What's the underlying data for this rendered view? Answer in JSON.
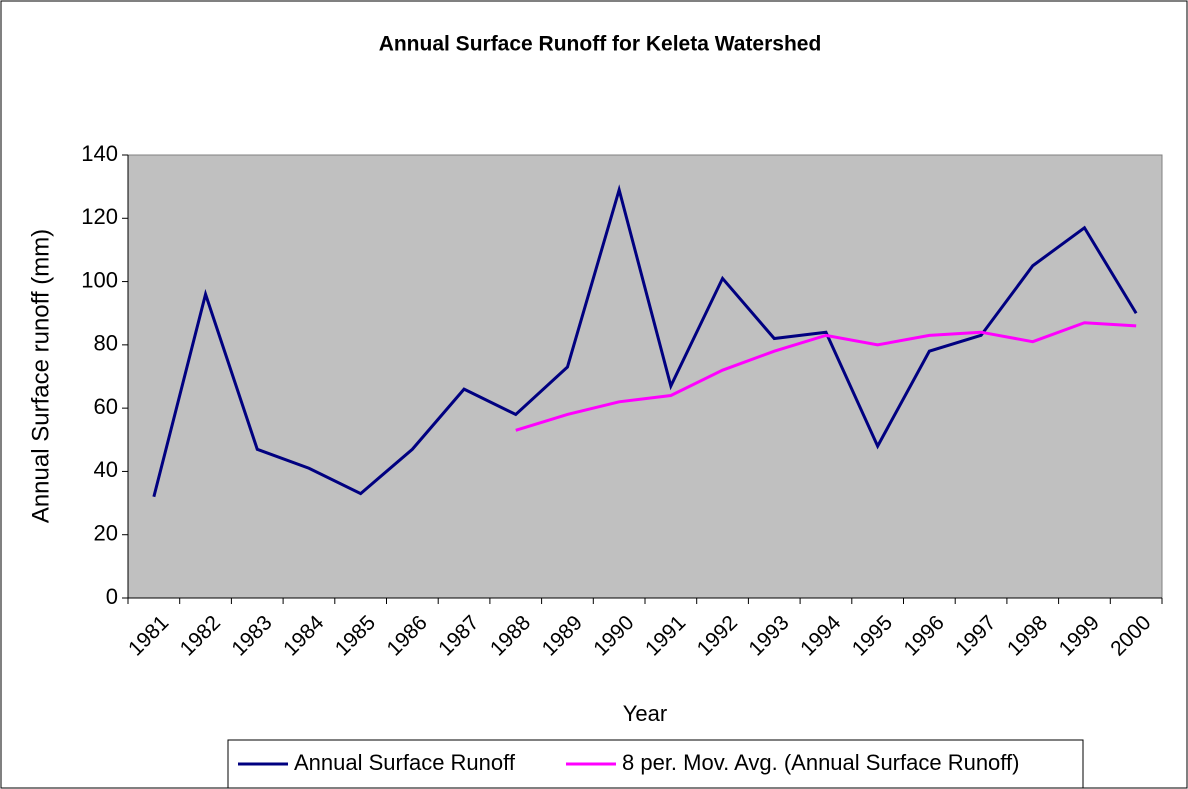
{
  "chart_data": {
    "type": "line",
    "title": "Annual Surface Runoff for Keleta Watershed",
    "x_label": "Year",
    "y_label": "Annual Surface runoff (mm)",
    "categories": [
      "1981",
      "1982",
      "1983",
      "1984",
      "1985",
      "1986",
      "1987",
      "1988",
      "1989",
      "1990",
      "1991",
      "1992",
      "1993",
      "1994",
      "1995",
      "1996",
      "1997",
      "1998",
      "1999",
      "2000"
    ],
    "series": [
      {
        "name": "Annual Surface Runoff",
        "color": "#000080",
        "values": [
          32,
          96,
          47,
          41,
          33,
          47,
          66,
          58,
          73,
          129,
          67,
          101,
          82,
          84,
          48,
          78,
          83,
          105,
          117,
          90
        ]
      },
      {
        "name": "8 per. Mov. Avg. (Annual Surface Runoff)",
        "color": "#ff00ff",
        "values": [
          null,
          null,
          null,
          null,
          null,
          null,
          null,
          53,
          58,
          62,
          64,
          72,
          78,
          83,
          80,
          83,
          84,
          81,
          87,
          86
        ]
      }
    ],
    "ylim": [
      0,
      140
    ],
    "yticks": [
      0,
      20,
      40,
      60,
      80,
      100,
      120,
      140
    ],
    "plot_background": "#c0c0c0",
    "legend": "bottom"
  }
}
